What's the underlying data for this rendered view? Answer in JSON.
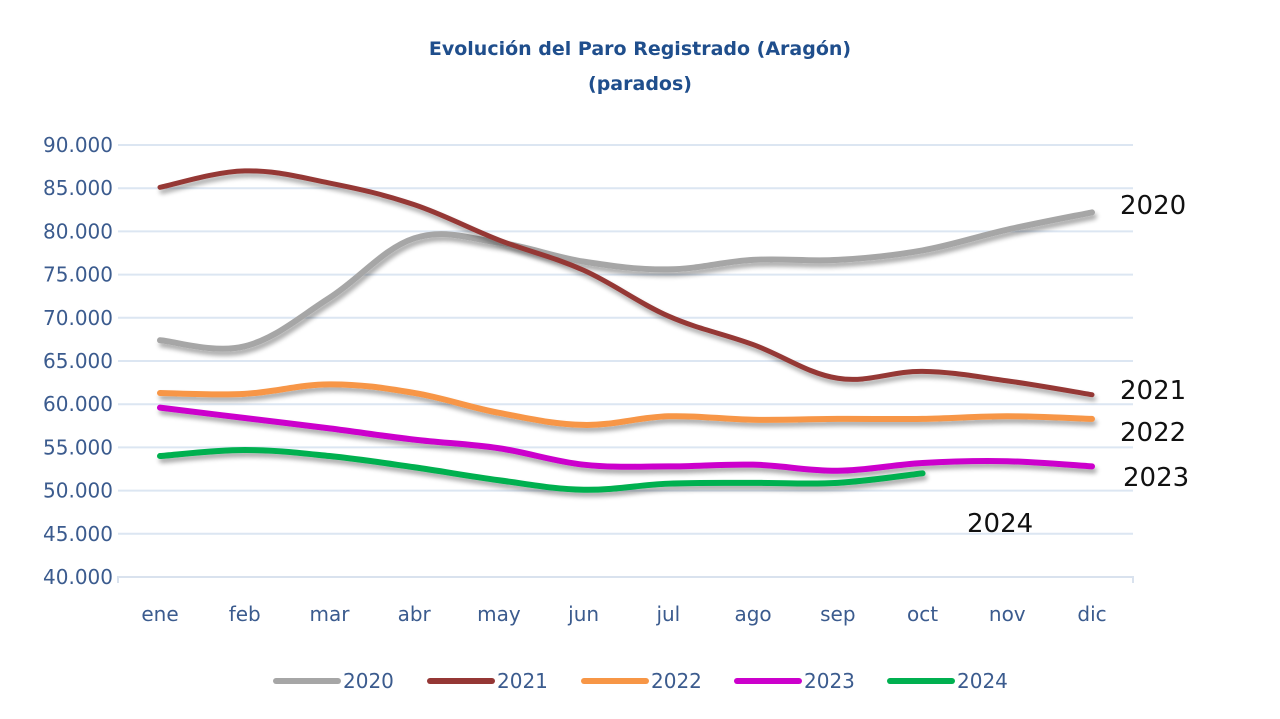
{
  "chart_data": {
    "type": "line",
    "title": "Evolución del Paro Registrado (Aragón)",
    "subtitle": "(parados)",
    "xlabel": "",
    "ylabel": "",
    "categories": [
      "ene",
      "feb",
      "mar",
      "abr",
      "may",
      "jun",
      "jul",
      "ago",
      "sep",
      "oct",
      "nov",
      "dic"
    ],
    "ylim": [
      40000,
      90000
    ],
    "yticks": [
      90000,
      85000,
      80000,
      75000,
      70000,
      65000,
      60000,
      55000,
      50000,
      45000,
      40000
    ],
    "ytick_labels": [
      "90.000",
      "85.000",
      "80.000",
      "75.000",
      "70.000",
      "65.000",
      "60.000",
      "55.000",
      "50.000",
      "45.000",
      "40.000"
    ],
    "grid": true,
    "legend_position": "bottom",
    "series": [
      {
        "name": "2020",
        "color": "#A6A6A6",
        "end_label": "2020",
        "values": [
          67400,
          66700,
          72300,
          79200,
          78700,
          76500,
          75600,
          76700,
          76700,
          77800,
          80200,
          82200
        ]
      },
      {
        "name": "2021",
        "color": "#953735",
        "end_label": "2021",
        "values": [
          85100,
          87000,
          85600,
          83100,
          79000,
          75500,
          70200,
          66900,
          63000,
          63800,
          62700,
          61100
        ]
      },
      {
        "name": "2022",
        "color": "#F79646",
        "end_label": "2022",
        "values": [
          61300,
          61200,
          62300,
          61300,
          59000,
          57600,
          58600,
          58200,
          58300,
          58300,
          58600,
          58300
        ]
      },
      {
        "name": "2023",
        "color": "#CC00CC",
        "end_label": "2023",
        "values": [
          59600,
          58400,
          57200,
          55900,
          54900,
          53000,
          52800,
          53000,
          52300,
          53200,
          53400,
          52800
        ]
      },
      {
        "name": "2024",
        "color": "#00B050",
        "end_label": "2024",
        "values": [
          54000,
          54700,
          54000,
          52700,
          51200,
          50100,
          50800,
          50900,
          50900,
          52000
        ]
      }
    ]
  }
}
